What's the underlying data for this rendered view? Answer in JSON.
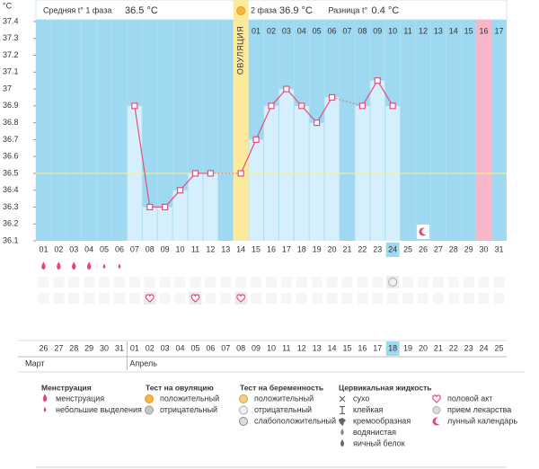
{
  "chart_data": {
    "type": "line",
    "y_unit": "°C",
    "header": {
      "phase1_label": "Средняя t° 1 фаза",
      "phase1_value": "36.5 °C",
      "phase2_label": "2 фаза",
      "phase2_value": "36.9 °C",
      "diff_label": "Разница t°",
      "diff_value": "0.4 °C"
    },
    "ovulation_label": "ОВУЛЯЦИЯ",
    "ovulation_day": "14",
    "categories": [
      "01",
      "02",
      "03",
      "04",
      "05",
      "06",
      "07",
      "08",
      "09",
      "10",
      "11",
      "12",
      "13",
      "14",
      "15",
      "16",
      "17",
      "18",
      "19",
      "20",
      "21",
      "22",
      "23",
      "24",
      "25",
      "26",
      "27",
      "28",
      "29",
      "30",
      "31"
    ],
    "phase2_days": [
      "01",
      "02",
      "03",
      "04",
      "05",
      "06",
      "07",
      "08",
      "09",
      "10",
      "11",
      "12",
      "13",
      "14",
      "15",
      "16",
      "17"
    ],
    "highlight_columns": [
      {
        "day": "30",
        "color": "#f8b7c9"
      }
    ],
    "values": [
      null,
      null,
      null,
      null,
      null,
      null,
      36.9,
      36.3,
      36.3,
      36.4,
      36.5,
      36.5,
      null,
      36.5,
      36.7,
      36.9,
      37,
      36.9,
      36.8,
      36.95,
      null,
      36.9,
      37.05,
      36.9,
      null,
      null,
      null,
      null,
      null,
      null,
      null
    ],
    "color": "#e2507c",
    "coverline": 36.5,
    "ylim": [
      36.1,
      37.4
    ],
    "yticks": [
      36.1,
      36.2,
      36.3,
      36.4,
      36.5,
      36.6,
      36.7,
      36.8,
      36.9,
      37,
      37.1,
      37.2,
      37.3,
      37.4
    ],
    "today": "24",
    "events": [
      {
        "day": "01",
        "icon": "drop"
      },
      {
        "day": "02",
        "icon": "drop"
      },
      {
        "day": "03",
        "icon": "drop"
      },
      {
        "day": "04",
        "icon": "drop"
      },
      {
        "day": "05",
        "icon": "drop-small"
      },
      {
        "day": "06",
        "icon": "drop-small"
      },
      {
        "day": "08",
        "icon": "heart"
      },
      {
        "day": "11",
        "icon": "heart"
      },
      {
        "day": "14",
        "icon": "heart"
      },
      {
        "day": "24",
        "icon": "test-neg"
      },
      {
        "day": "26",
        "icon": "moon"
      }
    ],
    "dates": [
      {
        "label": "26",
        "red": false
      },
      {
        "label": "27",
        "red": false
      },
      {
        "label": "28",
        "red": false
      },
      {
        "label": "29",
        "red": false
      },
      {
        "label": "30",
        "red": false
      },
      {
        "label": "31",
        "red": true
      },
      {
        "label": "01",
        "red": true
      },
      {
        "label": "02",
        "red": false
      },
      {
        "label": "03",
        "red": false
      },
      {
        "label": "04",
        "red": false
      },
      {
        "label": "05",
        "red": false
      },
      {
        "label": "06",
        "red": false
      },
      {
        "label": "07",
        "red": true
      },
      {
        "label": "08",
        "red": true
      },
      {
        "label": "09",
        "red": false
      },
      {
        "label": "10",
        "red": false
      },
      {
        "label": "11",
        "red": false
      },
      {
        "label": "12",
        "red": false
      },
      {
        "label": "13",
        "red": false
      },
      {
        "label": "14",
        "red": true
      },
      {
        "label": "15",
        "red": true
      },
      {
        "label": "16",
        "red": false
      },
      {
        "label": "17",
        "red": false
      },
      {
        "label": "18",
        "red": false
      },
      {
        "label": "19",
        "red": false
      },
      {
        "label": "20",
        "red": false
      },
      {
        "label": "21",
        "red": true
      },
      {
        "label": "22",
        "red": true
      },
      {
        "label": "23",
        "red": false
      },
      {
        "label": "24",
        "red": false
      },
      {
        "label": "25",
        "red": false
      }
    ],
    "months": [
      "Март",
      "Апрель"
    ],
    "legend": [
      {
        "title": "Менструация",
        "items": [
          {
            "label": "менструация",
            "icon": "drop"
          },
          {
            "label": "небольшие выделения",
            "icon": "drop-small"
          }
        ]
      },
      {
        "title": "Тест на овуляцию",
        "items": [
          {
            "label": "положительный",
            "icon": "sun"
          },
          {
            "label": "отрицательный",
            "icon": "sun-gray"
          }
        ]
      },
      {
        "title": "Тест на беременность",
        "items": [
          {
            "label": "положительный",
            "icon": "test-pos"
          },
          {
            "label": "отрицательный",
            "icon": "test-neg"
          },
          {
            "label": "слабоположительный",
            "icon": "test-weak"
          }
        ]
      },
      {
        "title": "Цервикальная жидкость",
        "items": [
          {
            "label": "сухо",
            "icon": "cross"
          },
          {
            "label": "клейкая",
            "icon": "glue"
          },
          {
            "label": "кремообразная",
            "icon": "cream"
          },
          {
            "label": "водянистая",
            "icon": "water"
          },
          {
            "label": "яичный белок",
            "icon": "egg"
          }
        ]
      },
      {
        "items": [
          {
            "label": "половой акт",
            "icon": "heart"
          },
          {
            "label": "прием лекарства",
            "icon": "pill"
          },
          {
            "label": "лунный календарь",
            "icon": "moon"
          }
        ]
      }
    ]
  }
}
